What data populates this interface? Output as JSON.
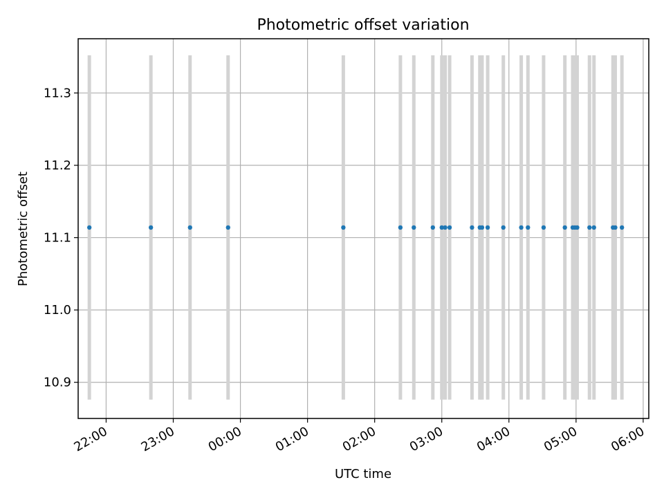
{
  "chart_data": {
    "type": "scatter",
    "title": "Photometric offset variation",
    "xlabel": "UTC time",
    "ylabel": "Photometric offset",
    "x_tick_labels": [
      "22:00",
      "23:00",
      "00:00",
      "01:00",
      "02:00",
      "03:00",
      "04:00",
      "05:00",
      "06:00"
    ],
    "y_tick_labels": [
      "10.9",
      "11.0",
      "11.1",
      "11.2",
      "11.3"
    ],
    "y_ticks": [
      10.9,
      11.0,
      11.1,
      11.2,
      11.3
    ],
    "ylim": [
      10.85,
      11.375
    ],
    "xlim": [
      "21:35",
      "06:05"
    ],
    "grid": true,
    "points": [
      {
        "t": "21:45",
        "y": 11.114,
        "err_low": 10.876,
        "err_high": 11.352
      },
      {
        "t": "22:40",
        "y": 11.114,
        "err_low": 10.876,
        "err_high": 11.352
      },
      {
        "t": "23:15",
        "y": 11.114,
        "err_low": 10.876,
        "err_high": 11.352
      },
      {
        "t": "23:49",
        "y": 11.114,
        "err_low": 10.876,
        "err_high": 11.352
      },
      {
        "t": "01:32",
        "y": 11.114,
        "err_low": 10.876,
        "err_high": 11.352
      },
      {
        "t": "02:23",
        "y": 11.114,
        "err_low": 10.876,
        "err_high": 11.352
      },
      {
        "t": "02:35",
        "y": 11.114,
        "err_low": 10.876,
        "err_high": 11.352
      },
      {
        "t": "02:52",
        "y": 11.114,
        "err_low": 10.876,
        "err_high": 11.352
      },
      {
        "t": "03:00",
        "y": 11.114,
        "err_low": 10.876,
        "err_high": 11.352
      },
      {
        "t": "03:03",
        "y": 11.114,
        "err_low": 10.876,
        "err_high": 11.352
      },
      {
        "t": "03:07",
        "y": 11.114,
        "err_low": 10.876,
        "err_high": 11.352
      },
      {
        "t": "03:27",
        "y": 11.114,
        "err_low": 10.876,
        "err_high": 11.352
      },
      {
        "t": "03:34",
        "y": 11.114,
        "err_low": 10.876,
        "err_high": 11.352
      },
      {
        "t": "03:36",
        "y": 11.114,
        "err_low": 10.876,
        "err_high": 11.352
      },
      {
        "t": "03:41",
        "y": 11.114,
        "err_low": 10.876,
        "err_high": 11.352
      },
      {
        "t": "03:55",
        "y": 11.114,
        "err_low": 10.876,
        "err_high": 11.352
      },
      {
        "t": "04:11",
        "y": 11.114,
        "err_low": 10.876,
        "err_high": 11.352
      },
      {
        "t": "04:17",
        "y": 11.114,
        "err_low": 10.876,
        "err_high": 11.352
      },
      {
        "t": "04:31",
        "y": 11.114,
        "err_low": 10.876,
        "err_high": 11.352
      },
      {
        "t": "04:50",
        "y": 11.114,
        "err_low": 10.876,
        "err_high": 11.352
      },
      {
        "t": "04:57",
        "y": 11.114,
        "err_low": 10.876,
        "err_high": 11.352
      },
      {
        "t": "04:59",
        "y": 11.114,
        "err_low": 10.876,
        "err_high": 11.352
      },
      {
        "t": "05:01",
        "y": 11.114,
        "err_low": 10.876,
        "err_high": 11.352
      },
      {
        "t": "05:12",
        "y": 11.114,
        "err_low": 10.876,
        "err_high": 11.352
      },
      {
        "t": "05:16",
        "y": 11.114,
        "err_low": 10.876,
        "err_high": 11.352
      },
      {
        "t": "05:33",
        "y": 11.114,
        "err_low": 10.876,
        "err_high": 11.352
      },
      {
        "t": "05:35",
        "y": 11.114,
        "err_low": 10.876,
        "err_high": 11.352
      },
      {
        "t": "05:41",
        "y": 11.114,
        "err_low": 10.876,
        "err_high": 11.352
      }
    ],
    "colors": {
      "point": "#1f77b4",
      "errorbar": "#d3d3d3",
      "grid": "#b0b0b0"
    }
  }
}
